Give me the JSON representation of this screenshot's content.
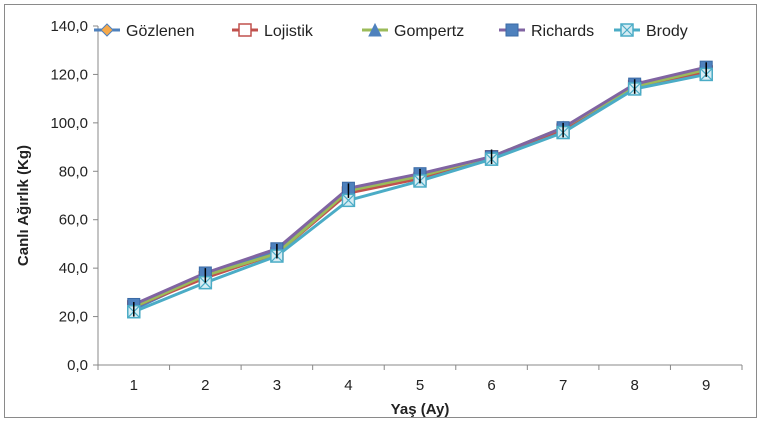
{
  "chart_data": {
    "type": "line",
    "title": "",
    "xlabel": "Yaş (Ay)",
    "ylabel": "Canlı Ağırlık (Kg)",
    "categories": [
      "1",
      "2",
      "3",
      "4",
      "5",
      "6",
      "7",
      "8",
      "9"
    ],
    "y_ticks": [
      "0,0",
      "20,0",
      "40,0",
      "60,0",
      "80,0",
      "100,0",
      "120,0",
      "140,0"
    ],
    "ylim": [
      0,
      140
    ],
    "grid": false,
    "legend_position": "top",
    "series": [
      {
        "name": "Gözlenen",
        "values": [
          23,
          37,
          47,
          72,
          78,
          86,
          97,
          115,
          122
        ],
        "color": "#4e81bd",
        "marker": "diamond",
        "marker_color": "#f6a94a"
      },
      {
        "name": "Lojistik",
        "values": [
          24,
          36,
          46,
          71,
          77,
          86,
          97,
          115,
          121
        ],
        "color": "#c0504d",
        "marker": "square-open",
        "marker_color": "#c0504d"
      },
      {
        "name": "Gompertz",
        "values": [
          24,
          37,
          46,
          72,
          78,
          86,
          98,
          115,
          122
        ],
        "color": "#9bbb59",
        "marker": "triangle",
        "marker_color": "#4e81bd"
      },
      {
        "name": "Richards",
        "values": [
          25,
          38,
          48,
          73,
          79,
          86,
          98,
          116,
          123
        ],
        "color": "#8064a2",
        "marker": "square",
        "marker_color": "#4e81bd"
      },
      {
        "name": "Brody",
        "values": [
          22,
          34,
          45,
          68,
          76,
          85,
          96,
          114,
          120
        ],
        "color": "#4bacc6",
        "marker": "x-box",
        "marker_color": "#4bacc6"
      }
    ]
  }
}
